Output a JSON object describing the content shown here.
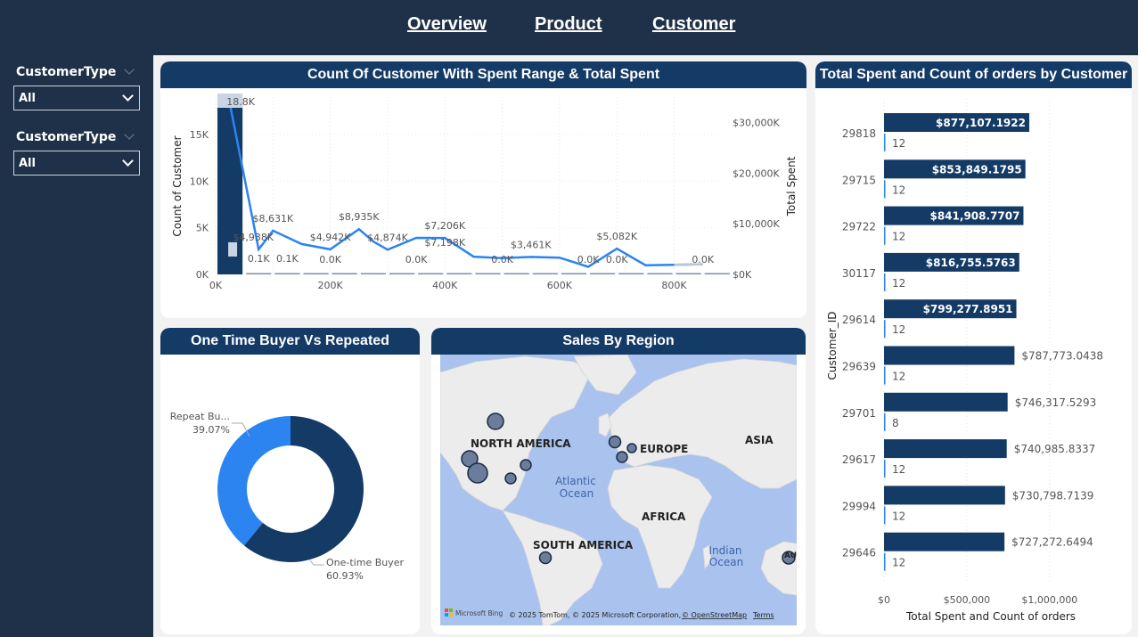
{
  "nav": {
    "overview": "Overview",
    "product": "Product",
    "customer": "Customer"
  },
  "slicers": [
    {
      "label": "CustomerType",
      "value": "All"
    },
    {
      "label": "CustomerType",
      "value": "All"
    }
  ],
  "colors": {
    "dark": "#143a66",
    "bright": "#2b84f0",
    "light": "#b7c7dc",
    "sidebar": "#1f3148"
  },
  "chart_data": [
    {
      "type": "bar",
      "title": "Count Of Customer With Spent Range & Total Spent",
      "ylabel": "Count of Customer",
      "y2label": "Total Spent",
      "xticks": [
        "0K",
        "200K",
        "400K",
        "600K",
        "800K"
      ],
      "yticks": [
        "0K",
        "5K",
        "10K",
        "15K"
      ],
      "y2ticks": [
        "$0K",
        "$10,000K",
        "$20,000K",
        "$30,000K"
      ],
      "xlim": [
        0,
        880
      ],
      "ylim": [
        0,
        19000
      ],
      "y2lim": [
        0,
        35000
      ],
      "bars": {
        "x": [
          0,
          50,
          100,
          150,
          200,
          250,
          300,
          350,
          400,
          450,
          500,
          550,
          600,
          650,
          700,
          750,
          800,
          850
        ],
        "counts": [
          18800,
          100,
          100,
          0,
          0,
          0,
          0,
          0,
          0,
          0,
          0,
          0,
          0,
          0,
          0,
          0,
          0,
          0
        ]
      },
      "line": {
        "x": [
          25,
          75,
          100,
          150,
          200,
          250,
          275,
          300,
          350,
          400,
          450,
          500,
          550,
          600,
          650,
          700,
          750,
          800,
          850
        ],
        "total_spent": [
          33500,
          4938,
          8631,
          6000,
          4942,
          8935,
          6500,
          4874,
          7206,
          7198,
          3500,
          3200,
          3461,
          3300,
          1500,
          5082,
          1800,
          1900,
          2000
        ]
      },
      "bar_labels": [
        {
          "x": 25,
          "count": 18800,
          "text": "18.8K"
        },
        {
          "x": 75,
          "count": 100,
          "text": "0.1K"
        },
        {
          "x": 125,
          "count": 100,
          "text": "0.1K"
        },
        {
          "x": 200,
          "count": 0,
          "text": "0.0K"
        },
        {
          "x": 350,
          "count": 0,
          "text": "0.0K"
        },
        {
          "x": 500,
          "count": 0,
          "text": "0.0K"
        },
        {
          "x": 650,
          "count": 0,
          "text": "0.0K"
        },
        {
          "x": 700,
          "count": 0,
          "text": "0.0K"
        },
        {
          "x": 850,
          "count": 0,
          "text": "0.0K"
        }
      ],
      "line_labels": [
        {
          "x": 75,
          "value": 4938,
          "text": "$4,938K"
        },
        {
          "x": 100,
          "value": 8631,
          "text": "$8,631K"
        },
        {
          "x": 200,
          "value": 4942,
          "text": "$4,942K"
        },
        {
          "x": 250,
          "value": 8935,
          "text": "$8,935K"
        },
        {
          "x": 300,
          "value": 4874,
          "text": "$4,874K"
        },
        {
          "x": 400,
          "value": 7206,
          "text": "$7,206K"
        },
        {
          "x": 400,
          "value": 7198,
          "text": "$7,198K"
        },
        {
          "x": 550,
          "value": 3461,
          "text": "$3,461K"
        },
        {
          "x": 700,
          "value": 5082,
          "text": "$5,082K"
        }
      ]
    },
    {
      "type": "pie",
      "title": "One Time Buyer Vs Repeated",
      "slices": [
        {
          "label": "Repeat Bu...",
          "value": 39.07,
          "pct_label": "39.07%"
        },
        {
          "label": "One-time Buyer",
          "value": 60.93,
          "pct_label": "60.93%"
        }
      ]
    },
    {
      "type": "bar",
      "title": "Total Spent and Count of orders by Customer",
      "xlabel": "Total Spent and Count of orders",
      "ylabel": "Customer_ID",
      "xlim": [
        0,
        1200000
      ],
      "xticks": [
        {
          "value": 0,
          "label": "$0"
        },
        {
          "value": 500000,
          "label": "$500,000"
        },
        {
          "value": 1000000,
          "label": "$1,000,000"
        }
      ],
      "categories": [
        "29818",
        "29715",
        "29722",
        "30117",
        "29614",
        "29639",
        "29701",
        "29617",
        "29994",
        "29646"
      ],
      "series": [
        {
          "name": "Total Spent",
          "values": [
            877107.1922,
            853849.1795,
            841908.7707,
            816755.5763,
            799277.8951,
            787773.0438,
            746317.5293,
            740985.8337,
            730798.7139,
            727272.6494
          ],
          "labels": [
            "$877,107.1922",
            "$853,849.1795",
            "$841,908.7707",
            "$816,755.5763",
            "$799,277.8951",
            "$787,773.0438",
            "$746,317.5293",
            "$740,985.8337",
            "$730,798.7139",
            "$727,272.6494"
          ]
        },
        {
          "name": "Count of orders",
          "values": [
            12,
            12,
            12,
            12,
            12,
            12,
            8,
            12,
            12,
            12
          ],
          "labels": [
            "12",
            "12",
            "12",
            "12",
            "12",
            "12",
            "8",
            "12",
            "12",
            "12"
          ]
        }
      ]
    }
  ],
  "map": {
    "title": "Sales By Region",
    "labels": {
      "na": "NORTH AMERICA",
      "eu": "EUROPE",
      "asia": "ASIA",
      "af": "AFRICA",
      "sa": "SOUTH AMERICA",
      "atlantic": "Atlantic",
      "atlantic2": "Ocean",
      "indian": "Indian",
      "indian2": "Ocean",
      "au": "AU"
    },
    "attribution": "© 2025 TomTom, © 2025 Microsoft Corporation,",
    "osm": "© OpenStreetMap",
    "terms": "Terms",
    "bing": "Microsoft Bing",
    "bubbles": [
      {
        "region": "Canada",
        "size": 3
      },
      {
        "region": "US West",
        "size": 3
      },
      {
        "region": "US Southwest",
        "size": 4
      },
      {
        "region": "US Central",
        "size": 2
      },
      {
        "region": "US Southeast",
        "size": 2
      },
      {
        "region": "UK",
        "size": 2
      },
      {
        "region": "Germany",
        "size": 1
      },
      {
        "region": "France",
        "size": 2
      },
      {
        "region": "Brazil",
        "size": 2
      },
      {
        "region": "Australia",
        "size": 2
      }
    ]
  }
}
